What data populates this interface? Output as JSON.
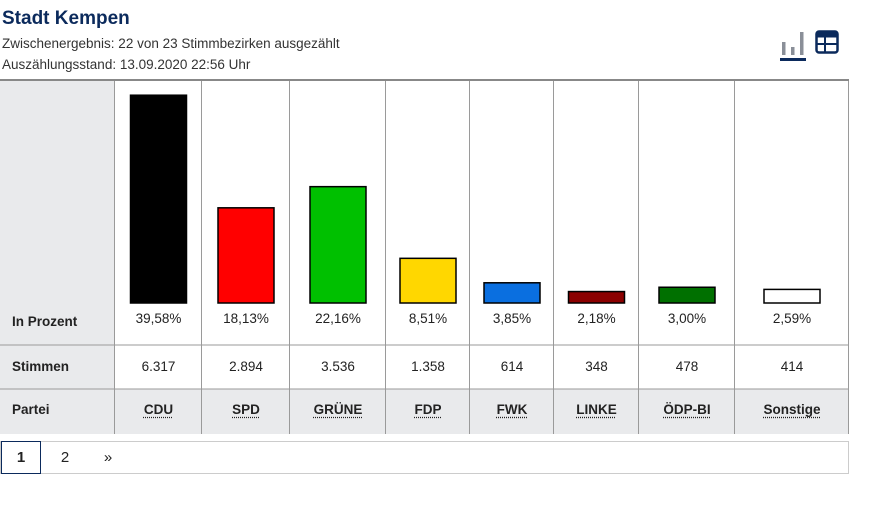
{
  "header": {
    "title": "Stadt Kempen",
    "status_line": "Zwischenergebnis: 22 von 23 Stimmbezirken ausgezählt",
    "timestamp_line": "Auszählungsstand: 13.09.2020 22:56 Uhr"
  },
  "toolbar": {
    "chart_icon": "bar-chart-icon",
    "table_icon": "table-icon"
  },
  "rows": {
    "percent": "In Prozent",
    "votes": "Stimmen",
    "party": "Partei"
  },
  "chart_data": {
    "type": "bar",
    "categories": [
      "CDU",
      "SPD",
      "GRÜNE",
      "FDP",
      "FWK",
      "LINKE",
      "ÖDP-BI",
      "Sonstige"
    ],
    "values": [
      39.58,
      18.13,
      22.16,
      8.51,
      3.85,
      2.18,
      3.0,
      2.59
    ],
    "value_labels": [
      "39,58%",
      "18,13%",
      "22,16%",
      "8,51%",
      "3,85%",
      "2,18%",
      "3,00%",
      "2,59%"
    ],
    "votes": [
      "6.317",
      "2.894",
      "3.536",
      "1.358",
      "614",
      "348",
      "478",
      "414"
    ],
    "colors": [
      "#000000",
      "#ff0000",
      "#00c000",
      "#ffd700",
      "#0a6fe0",
      "#8b0000",
      "#007000",
      "#ffffff"
    ],
    "ylim": [
      0,
      40
    ]
  },
  "pagination": {
    "pages": [
      "1",
      "2"
    ],
    "next": "»",
    "current": "1"
  }
}
